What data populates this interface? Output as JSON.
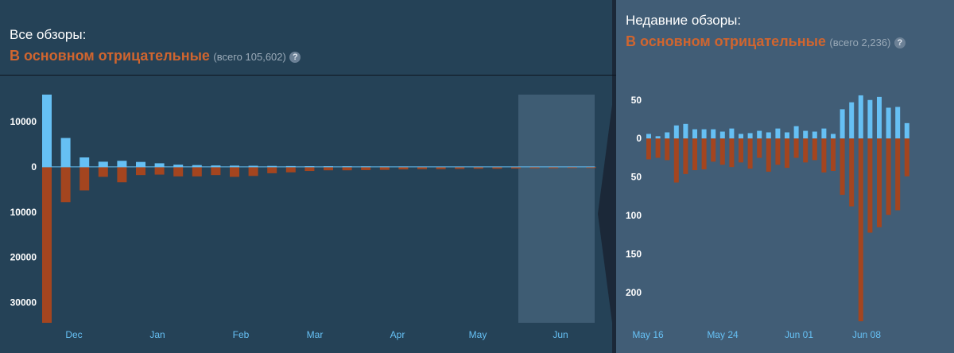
{
  "all_reviews": {
    "title": "Все обзоры:",
    "score": "В основном отрицательные",
    "count": "(всего 105,602)",
    "help": "?"
  },
  "recent_reviews": {
    "title": "Недавние обзоры:",
    "score": "В основном отрицательные",
    "count": "(всего 2,236)",
    "help": "?"
  },
  "colors": {
    "positive": "#66c0f4",
    "negative": "#a4451f",
    "highlight": "#3e5c73"
  },
  "chart_data": [
    {
      "type": "bar",
      "y_ticks_up": [
        10000,
        0
      ],
      "y_ticks_down": [
        10000,
        20000,
        30000
      ],
      "x_ticks": [
        "Dec",
        "Jan",
        "Feb",
        "Mar",
        "Apr",
        "May",
        "Jun"
      ],
      "ylim": [
        -34500,
        16000
      ],
      "series": [
        {
          "values": [
            16000,
            6400,
            2100,
            1150,
            1350,
            1100,
            800,
            500,
            400,
            320,
            280,
            250,
            210,
            180,
            160,
            150,
            140,
            120,
            100,
            90,
            80,
            70,
            60,
            60,
            50,
            50,
            40,
            40,
            40,
            30
          ]
        },
        {
          "values": [
            -34500,
            -7800,
            -5200,
            -2200,
            -3400,
            -1800,
            -1700,
            -2100,
            -2100,
            -1800,
            -2200,
            -2000,
            -1400,
            -1200,
            -900,
            -750,
            -750,
            -700,
            -650,
            -550,
            -500,
            -500,
            -450,
            -400,
            -400,
            -350,
            -300,
            -300,
            -250,
            -250
          ]
        }
      ],
      "highlight_range": "Jun"
    },
    {
      "type": "bar",
      "y_ticks_up": [
        50,
        0
      ],
      "y_ticks_down": [
        50,
        100,
        150,
        200
      ],
      "x_ticks": [
        "May 16",
        "May 24",
        "Jun 01",
        "Jun 08"
      ],
      "ylim": [
        -240,
        58
      ],
      "series": [
        {
          "values": [
            6,
            3,
            8,
            17,
            19,
            12,
            12,
            12,
            9,
            13,
            6,
            7,
            10,
            8,
            13,
            8,
            16,
            10,
            9,
            13,
            6,
            38,
            47,
            56,
            50,
            54,
            40,
            41,
            20
          ]
        },
        {
          "values": [
            -27,
            -25,
            -28,
            -57,
            -46,
            -41,
            -40,
            -30,
            -34,
            -37,
            -31,
            -39,
            -25,
            -43,
            -34,
            -38,
            -25,
            -31,
            -28,
            -44,
            -42,
            -73,
            -88,
            -237,
            -122,
            -115,
            -99,
            -93,
            -49
          ]
        }
      ]
    }
  ]
}
